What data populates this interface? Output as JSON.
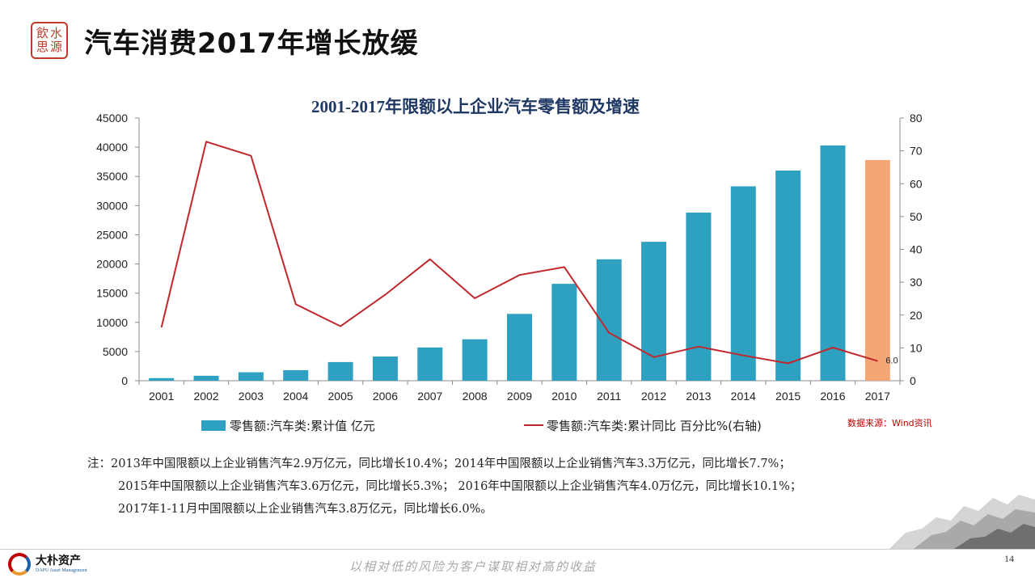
{
  "header": {
    "seal_chars": [
      "飲",
      "水",
      "思",
      "源"
    ],
    "title": "汽车消费2017年增长放缓"
  },
  "colors": {
    "bar": "#2ea1c1",
    "bar_highlight": "#f4a674",
    "line": "#c0282d",
    "title": "#1f3864",
    "source": "#c00000"
  },
  "chart_data": {
    "type": "bar+line",
    "title": "2001-2017年限额以上企业汽车零售额及增速",
    "categories": [
      "2001",
      "2002",
      "2003",
      "2004",
      "2005",
      "2006",
      "2007",
      "2008",
      "2009",
      "2010",
      "2011",
      "2012",
      "2013",
      "2014",
      "2015",
      "2016",
      "2017"
    ],
    "series": [
      {
        "name": "零售额:汽车类:累计值 亿元",
        "type": "bar",
        "axis": "left",
        "values": [
          450,
          850,
          1450,
          1800,
          3200,
          4150,
          5700,
          7100,
          11450,
          16600,
          20800,
          23800,
          28800,
          33300,
          36000,
          40300,
          37800
        ],
        "highlight_index": 16
      },
      {
        "name": "零售额:汽车类:累计同比 百分比%(右轴)",
        "type": "line",
        "axis": "right",
        "values": [
          16.3,
          72.8,
          68.5,
          23.3,
          16.6,
          26.2,
          37.0,
          25.1,
          32.2,
          34.6,
          14.6,
          7.2,
          10.4,
          7.7,
          5.3,
          10.1,
          6.0
        ]
      }
    ],
    "left_axis": {
      "min": 0,
      "max": 45000,
      "ticks": [
        "0",
        "5000",
        "10000",
        "15000",
        "20000",
        "25000",
        "30000",
        "35000",
        "40000",
        "45000"
      ]
    },
    "right_axis": {
      "min": 0,
      "max": 80,
      "ticks": [
        "0",
        "10",
        "20",
        "30",
        "40",
        "50",
        "60",
        "70",
        "80"
      ]
    },
    "data_labels": [
      {
        "index": 16,
        "series": 1,
        "text": "6.0"
      }
    ],
    "legend_position": "bottom",
    "source": "数据来源：Wind资讯",
    "grid": false
  },
  "notes": [
    "注：2013年中国限额以上企业销售汽车2.9万亿元，同比增长10.4%；2014年中国限额以上企业销售汽车3.3万亿元，同比增长7.7%；",
    "2015年中国限额以上企业销售汽车3.6万亿元，同比增长5.3%； 2016年中国限额以上企业销售汽车4.0万亿元，同比增长10.1%；",
    "2017年1-11月中国限额以上企业销售汽车3.8万亿元，同比增长6.0%。"
  ],
  "footer": {
    "logo_cn": "大朴资产",
    "logo_en": "DAPU Asset Management",
    "slogan": "以相对低的风险为客户谋取相对高的收益",
    "page_number": "14"
  }
}
